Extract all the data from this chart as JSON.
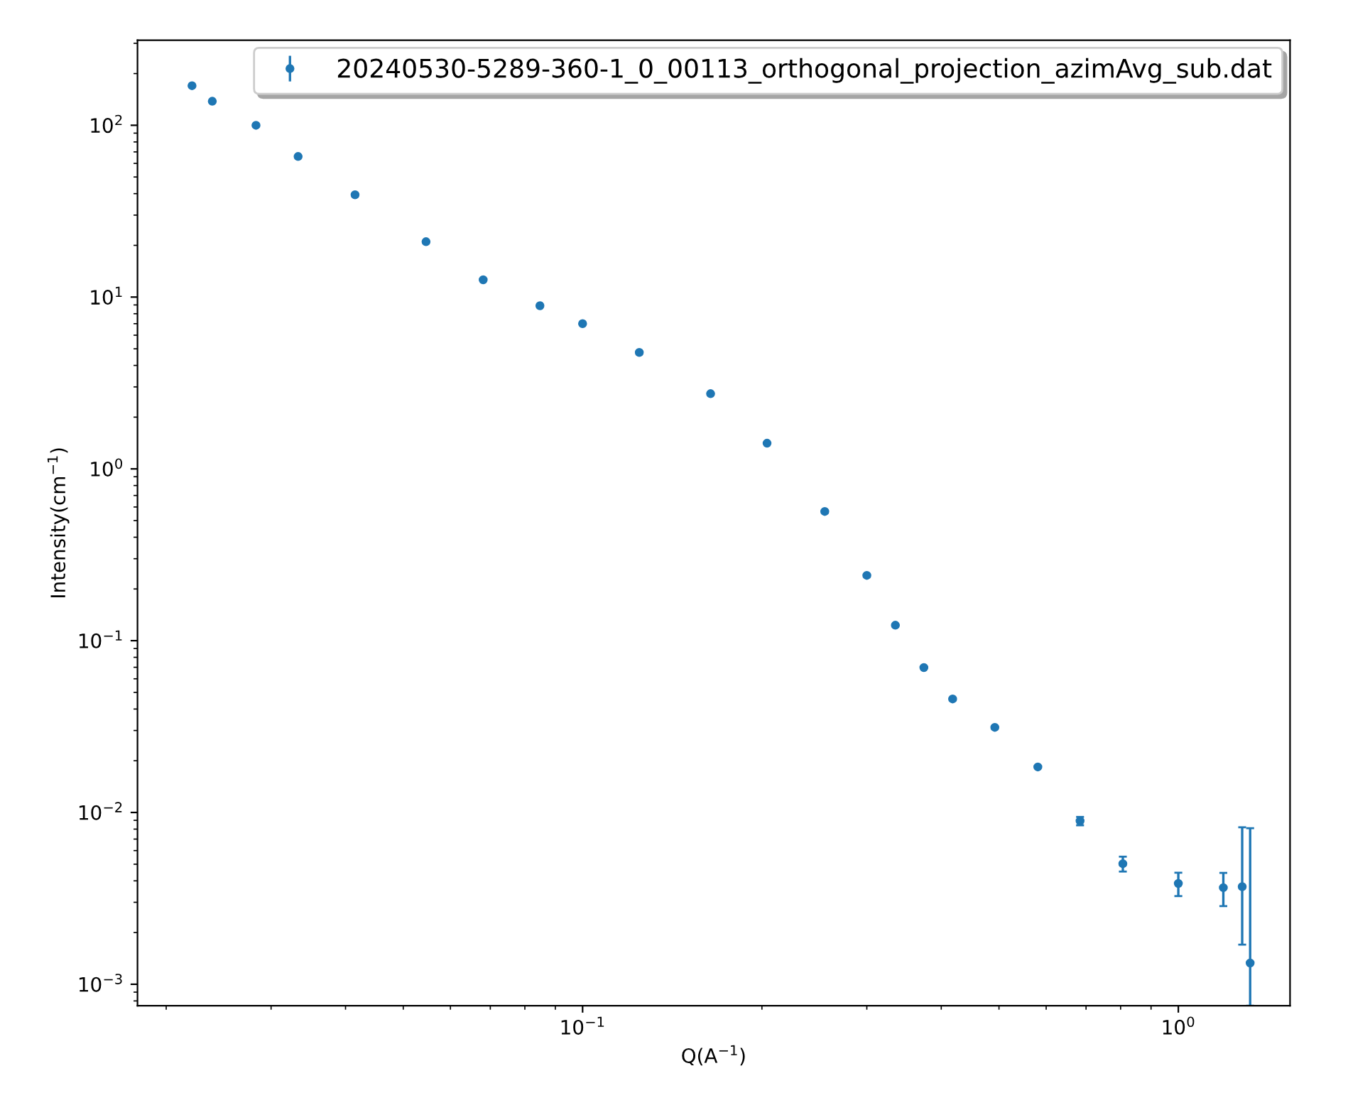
{
  "chart_data": {
    "type": "scatter",
    "xlabel": "Q(A$^{−1}$)",
    "ylabel": "Intensity(cm$^{−1}$)",
    "log": "xy",
    "xlim": [
      0.0179,
      1.54
    ],
    "ylim": [
      0.00075,
      313
    ],
    "xticks": [
      {
        "value": 0.1,
        "label": "10$^{−1}$"
      },
      {
        "value": 1,
        "label": "10$^{0}$"
      }
    ],
    "yticks": [
      {
        "value": 0.001,
        "label": "10$^{−3}$"
      },
      {
        "value": 0.01,
        "label": "10$^{−2}$"
      },
      {
        "value": 0.1,
        "label": "10$^{−1}$"
      },
      {
        "value": 1,
        "label": "10$^{0}$"
      },
      {
        "value": 10,
        "label": "10$^{1}$"
      },
      {
        "value": 100,
        "label": "10$^{2}$"
      }
    ],
    "legend": "top right",
    "marker": "circle",
    "grid": false,
    "series": [
      {
        "name": "20240530-5289-360-1_0_00113_orthogonal_projection_azimAvg_sub.dat",
        "color": "#1f77b4",
        "x": [
          0.0221,
          0.0239,
          0.0283,
          0.0333,
          0.0415,
          0.0546,
          0.0681,
          0.0848,
          0.1,
          0.1245,
          0.164,
          0.204,
          0.255,
          0.3,
          0.335,
          0.374,
          0.418,
          0.492,
          0.581,
          0.684,
          0.807,
          1.0,
          1.19,
          1.28,
          1.32
        ],
        "values": [
          170,
          138,
          100,
          65.8,
          39.4,
          21,
          12.6,
          8.9,
          7.0,
          4.76,
          2.74,
          1.41,
          0.565,
          0.24,
          0.123,
          0.0697,
          0.0458,
          0.0313,
          0.0184,
          0.00892,
          0.00503,
          0.00386,
          0.00365,
          0.0037,
          0.00133
        ],
        "errors": [
          null,
          null,
          null,
          null,
          null,
          null,
          null,
          null,
          null,
          null,
          null,
          null,
          null,
          null,
          null,
          null,
          null,
          null,
          null,
          0.0005,
          0.0005,
          0.0006,
          0.0008,
          [
            0.0017,
            0.0082
          ],
          [
            0.00075,
            0.0081
          ]
        ]
      }
    ]
  }
}
